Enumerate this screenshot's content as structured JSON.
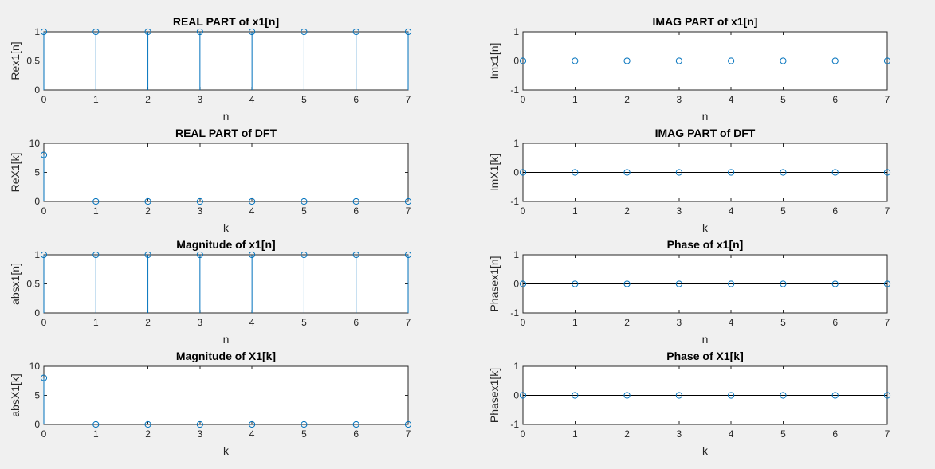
{
  "figure": {
    "background": "#f0f0f0",
    "stem_color": "#0072bd",
    "axes_color": "#262626"
  },
  "chart_data": [
    {
      "type": "stem",
      "title": "REAL PART of x1[n]",
      "xlabel": "n",
      "ylabel": "Rex1[n]",
      "xlim": [
        0,
        7
      ],
      "ylim": [
        0,
        1
      ],
      "yticks": [
        0,
        0.5,
        1
      ],
      "ytick_labels": [
        "0",
        "0.5",
        "1"
      ],
      "xticks": [
        0,
        1,
        2,
        3,
        4,
        5,
        6,
        7
      ],
      "x": [
        0,
        1,
        2,
        3,
        4,
        5,
        6,
        7
      ],
      "y": [
        1,
        1,
        1,
        1,
        1,
        1,
        1,
        1
      ]
    },
    {
      "type": "stem",
      "title": "IMAG PART of x1[n]",
      "xlabel": "n",
      "ylabel": "Imx1[n]",
      "xlim": [
        0,
        7
      ],
      "ylim": [
        -1,
        1
      ],
      "yticks": [
        -1,
        0,
        1
      ],
      "ytick_labels": [
        "-1",
        "0",
        "1"
      ],
      "xticks": [
        0,
        1,
        2,
        3,
        4,
        5,
        6,
        7
      ],
      "x": [
        0,
        1,
        2,
        3,
        4,
        5,
        6,
        7
      ],
      "y": [
        0,
        0,
        0,
        0,
        0,
        0,
        0,
        0
      ]
    },
    {
      "type": "stem",
      "title": "REAL PART of DFT",
      "xlabel": "k",
      "ylabel": "ReX1[k]",
      "xlim": [
        0,
        7
      ],
      "ylim": [
        0,
        10
      ],
      "yticks": [
        0,
        5,
        10
      ],
      "ytick_labels": [
        "0",
        "5",
        "10"
      ],
      "xticks": [
        0,
        1,
        2,
        3,
        4,
        5,
        6,
        7
      ],
      "x": [
        0,
        1,
        2,
        3,
        4,
        5,
        6,
        7
      ],
      "y": [
        8,
        0,
        0,
        0,
        0,
        0,
        0,
        0
      ]
    },
    {
      "type": "stem",
      "title": "IMAG PART of DFT",
      "xlabel": "k",
      "ylabel": "ImX1[k]",
      "xlim": [
        0,
        7
      ],
      "ylim": [
        -1,
        1
      ],
      "yticks": [
        -1,
        0,
        1
      ],
      "ytick_labels": [
        "-1",
        "0",
        "1"
      ],
      "xticks": [
        0,
        1,
        2,
        3,
        4,
        5,
        6,
        7
      ],
      "x": [
        0,
        1,
        2,
        3,
        4,
        5,
        6,
        7
      ],
      "y": [
        0,
        0,
        0,
        0,
        0,
        0,
        0,
        0
      ]
    },
    {
      "type": "stem",
      "title": "Magnitude of x1[n]",
      "xlabel": "n",
      "ylabel": "absx1[n]",
      "xlim": [
        0,
        7
      ],
      "ylim": [
        0,
        1
      ],
      "yticks": [
        0,
        0.5,
        1
      ],
      "ytick_labels": [
        "0",
        "0.5",
        "1"
      ],
      "xticks": [
        0,
        1,
        2,
        3,
        4,
        5,
        6,
        7
      ],
      "x": [
        0,
        1,
        2,
        3,
        4,
        5,
        6,
        7
      ],
      "y": [
        1,
        1,
        1,
        1,
        1,
        1,
        1,
        1
      ]
    },
    {
      "type": "stem",
      "title": "Phase of x1[n]",
      "xlabel": "n",
      "ylabel": "Phasex1[n]",
      "xlim": [
        0,
        7
      ],
      "ylim": [
        -1,
        1
      ],
      "yticks": [
        -1,
        0,
        1
      ],
      "ytick_labels": [
        "-1",
        "0",
        "1"
      ],
      "xticks": [
        0,
        1,
        2,
        3,
        4,
        5,
        6,
        7
      ],
      "x": [
        0,
        1,
        2,
        3,
        4,
        5,
        6,
        7
      ],
      "y": [
        0,
        0,
        0,
        0,
        0,
        0,
        0,
        0
      ]
    },
    {
      "type": "stem",
      "title": "Magnitude of X1[k]",
      "xlabel": "k",
      "ylabel": "absX1[k]",
      "xlim": [
        0,
        7
      ],
      "ylim": [
        0,
        10
      ],
      "yticks": [
        0,
        5,
        10
      ],
      "ytick_labels": [
        "0",
        "5",
        "10"
      ],
      "xticks": [
        0,
        1,
        2,
        3,
        4,
        5,
        6,
        7
      ],
      "x": [
        0,
        1,
        2,
        3,
        4,
        5,
        6,
        7
      ],
      "y": [
        8,
        0,
        0,
        0,
        0,
        0,
        0,
        0
      ]
    },
    {
      "type": "stem",
      "title": "Phase of X1[k]",
      "xlabel": "k",
      "ylabel": "Phasex1[k]",
      "xlim": [
        0,
        7
      ],
      "ylim": [
        -1,
        1
      ],
      "yticks": [
        -1,
        0,
        1
      ],
      "ytick_labels": [
        "-1",
        "0",
        "1"
      ],
      "xticks": [
        0,
        1,
        2,
        3,
        4,
        5,
        6,
        7
      ],
      "x": [
        0,
        1,
        2,
        3,
        4,
        5,
        6,
        7
      ],
      "y": [
        0,
        0,
        0,
        0,
        0,
        0,
        0,
        0
      ]
    }
  ]
}
